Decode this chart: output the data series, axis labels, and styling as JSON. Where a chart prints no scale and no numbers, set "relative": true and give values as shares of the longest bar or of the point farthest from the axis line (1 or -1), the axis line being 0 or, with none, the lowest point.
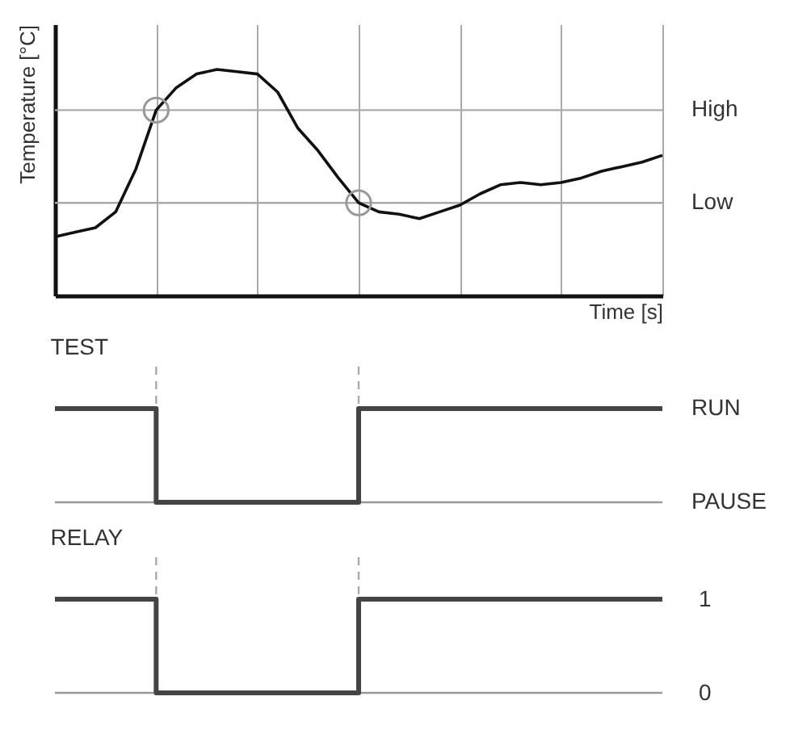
{
  "chart_data": [
    {
      "type": "line",
      "relative": true,
      "xlabel": "Time [s]",
      "ylabel": "Temperature [°C]",
      "grid": "x",
      "categories": [
        null,
        null,
        null,
        null,
        null,
        null,
        null,
        null,
        null,
        null,
        null,
        null,
        null,
        null,
        null,
        null,
        null,
        null,
        null,
        null,
        null,
        null,
        null,
        null,
        null,
        null,
        null,
        null,
        null,
        null,
        null
      ],
      "series": [
        {
          "color": "#111111",
          "values": [
            0.26,
            0.28,
            0.3,
            0.37,
            0.56,
            0.82,
            0.92,
            0.98,
            1.0,
            0.99,
            0.98,
            0.9,
            0.74,
            0.64,
            0.52,
            0.41,
            0.37,
            0.36,
            0.34,
            0.37,
            0.4,
            0.45,
            0.49,
            0.5,
            0.49,
            0.5,
            0.52,
            0.55,
            0.57,
            0.59,
            0.62
          ]
        }
      ],
      "ref_lines": [
        {
          "axis": "y",
          "value": 0.82,
          "label": "High",
          "color": "#aaaaaa"
        },
        {
          "axis": "y",
          "value": 0.41,
          "label": "Low",
          "color": "#aaaaaa"
        }
      ]
    },
    {
      "type": "step",
      "title": "TEST",
      "grid": "x",
      "color": "#444444",
      "relative": true,
      "categories": [
        null,
        null,
        null,
        null,
        null,
        null,
        null,
        null,
        null,
        null,
        null,
        null,
        null,
        null,
        null,
        null,
        null,
        null,
        null,
        null,
        null,
        null,
        null,
        null,
        null,
        null,
        null,
        null,
        null,
        null,
        null
      ],
      "values": [
        1,
        1,
        1,
        1,
        1,
        0,
        0,
        0,
        0,
        0,
        0,
        0,
        0,
        0,
        0,
        1,
        1,
        1,
        1,
        1,
        1,
        1,
        1,
        1,
        1,
        1,
        1,
        1,
        1,
        1,
        1
      ],
      "annotations": [
        "RUN",
        "PAUSE"
      ],
      "ref_lines": [
        {
          "axis": "y",
          "value": 0,
          "color": "#999999"
        }
      ]
    },
    {
      "type": "step",
      "title": "RELAY",
      "grid": "x",
      "color": "#444444",
      "ylim": [
        0,
        1
      ],
      "yticks": [
        0,
        1
      ],
      "tick_labels": "y",
      "categories": [
        null,
        null,
        null,
        null,
        null,
        null,
        null,
        null,
        null,
        null,
        null,
        null,
        null,
        null,
        null,
        null,
        null,
        null,
        null,
        null,
        null,
        null,
        null,
        null,
        null,
        null,
        null,
        null,
        null,
        null,
        null
      ],
      "values": [
        1,
        1,
        1,
        1,
        1,
        0,
        0,
        0,
        0,
        0,
        0,
        0,
        0,
        0,
        0,
        1,
        1,
        1,
        1,
        1,
        1,
        1,
        1,
        1,
        1,
        1,
        1,
        1,
        1,
        1,
        1
      ],
      "ref_lines": [
        {
          "axis": "y",
          "value": 0,
          "color": "#999999"
        }
      ]
    }
  ]
}
